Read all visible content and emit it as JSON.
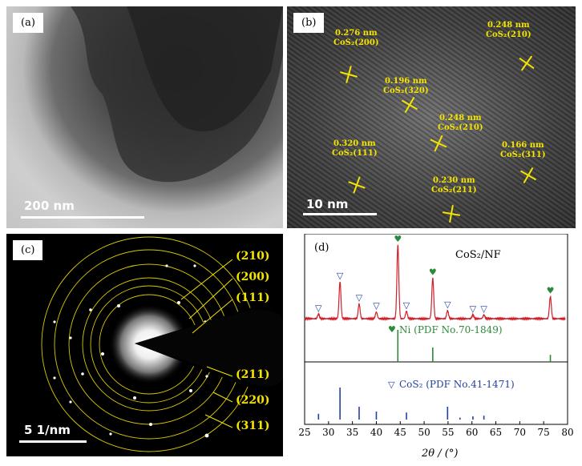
{
  "panels": {
    "a": {
      "label": "(a)",
      "scale": "200 nm"
    },
    "b": {
      "label": "(b)",
      "scale": "10 nm",
      "annotations": [
        {
          "d": "0.276 nm",
          "plane": "CoS₂(200)"
        },
        {
          "d": "0.196 nm",
          "plane": "CoS₂(320)"
        },
        {
          "d": "0.248 nm",
          "plane": "CoS₂(210)"
        },
        {
          "d": "0.248 nm",
          "plane": "CoS₂(210)"
        },
        {
          "d": "0.320 nm",
          "plane": "CoS₂(111)"
        },
        {
          "d": "0.166 nm",
          "plane": "CoS₂(311)"
        },
        {
          "d": "0.230 nm",
          "plane": "CoS₂(211)"
        }
      ]
    },
    "c": {
      "label": "(c)",
      "scale": "5 1/nm",
      "rings": [
        "(210)",
        "(200)",
        "(111)",
        "(211)",
        "(220)",
        "(311)"
      ]
    },
    "d": {
      "label": "(d)"
    }
  },
  "colors": {
    "annotation": "#f5e400",
    "xrd": "#d0202a",
    "ni": "#2a8a3a",
    "cos2": "#2440a0"
  },
  "chart_data": {
    "type": "line",
    "xlabel": "2θ / (°)",
    "xlim": [
      25,
      80
    ],
    "xticks": [
      25,
      30,
      35,
      40,
      45,
      50,
      55,
      60,
      65,
      70,
      75,
      80
    ],
    "series": [
      {
        "name": "CoS₂/NF",
        "peaks": [
          {
            "x": 27.9,
            "h": 0.06
          },
          {
            "x": 32.4,
            "h": 0.5
          },
          {
            "x": 36.4,
            "h": 0.2
          },
          {
            "x": 40.0,
            "h": 0.09
          },
          {
            "x": 44.5,
            "h": 1.0
          },
          {
            "x": 46.3,
            "h": 0.1
          },
          {
            "x": 51.8,
            "h": 0.55
          },
          {
            "x": 54.9,
            "h": 0.11
          },
          {
            "x": 60.2,
            "h": 0.05
          },
          {
            "x": 62.5,
            "h": 0.05
          },
          {
            "x": 76.4,
            "h": 0.3
          }
        ]
      }
    ],
    "markers": {
      "heart": [
        44.5,
        51.8,
        76.4
      ],
      "triangle": [
        27.9,
        32.4,
        36.4,
        40.0,
        46.3,
        54.9,
        60.2,
        62.5
      ]
    },
    "references": [
      {
        "name": "Ni (PDF No.70-1849)",
        "lines": [
          {
            "x": 44.5,
            "h": 1.0
          },
          {
            "x": 51.8,
            "h": 0.45
          },
          {
            "x": 76.4,
            "h": 0.22
          }
        ]
      },
      {
        "name": "CoS₂ (PDF No.41-1471)",
        "lines": [
          {
            "x": 27.9,
            "h": 0.18
          },
          {
            "x": 32.4,
            "h": 1.0
          },
          {
            "x": 36.4,
            "h": 0.4
          },
          {
            "x": 40.0,
            "h": 0.25
          },
          {
            "x": 46.3,
            "h": 0.22
          },
          {
            "x": 54.9,
            "h": 0.4
          },
          {
            "x": 57.5,
            "h": 0.06
          },
          {
            "x": 60.2,
            "h": 0.1
          },
          {
            "x": 62.5,
            "h": 0.12
          }
        ]
      }
    ]
  }
}
